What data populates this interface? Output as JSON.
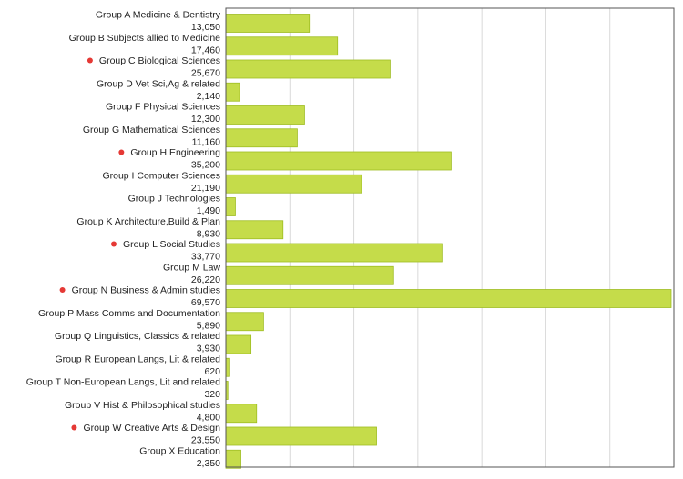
{
  "chart_data": {
    "type": "bar",
    "orientation": "horizontal",
    "categories": [
      "Group A Medicine & Dentistry",
      "Group B Subjects allied to Medicine",
      "Group C Biological Sciences",
      "Group D Vet Sci,Ag & related",
      "Group F Physical Sciences",
      "Group G Mathematical Sciences",
      "Group H Engineering",
      "Group I Computer Sciences",
      "Group J Technologies",
      "Group K Architecture,Build & Plan",
      "Group L Social Studies",
      "Group M Law",
      "Group N Business & Admin studies",
      "Group P Mass Comms and Documentation",
      "Group Q Linguistics, Classics & related",
      "Group R European Langs, Lit & related",
      "Group T Non-European Langs, Lit and related",
      "Group V Hist & Philosophical studies",
      "Group W Creative Arts & Design",
      "Group X Education"
    ],
    "values": [
      13050,
      17460,
      25670,
      2140,
      12300,
      11160,
      35200,
      21190,
      1490,
      8930,
      33770,
      26220,
      69570,
      5890,
      3930,
      620,
      320,
      4800,
      23550,
      2350
    ],
    "value_labels": [
      "13,050",
      "17,460",
      "25,670",
      "2,140",
      "12,300",
      "11,160",
      "35,200",
      "21,190",
      "1,490",
      "8,930",
      "33,770",
      "26,220",
      "69,570",
      "5,890",
      "3,930",
      "620",
      "320",
      "4,800",
      "23,550",
      "2,350"
    ],
    "highlighted": [
      false,
      false,
      true,
      false,
      false,
      false,
      true,
      false,
      false,
      false,
      true,
      false,
      true,
      false,
      false,
      false,
      false,
      false,
      true,
      false
    ],
    "xlim": [
      0,
      70000
    ],
    "grid": true,
    "bar_color": "#c5dc4a",
    "bar_edge_color": "#9fbd22",
    "marker_color": "#e53935",
    "grid_color": "#d9d9d9",
    "frame_color": "#555555"
  }
}
